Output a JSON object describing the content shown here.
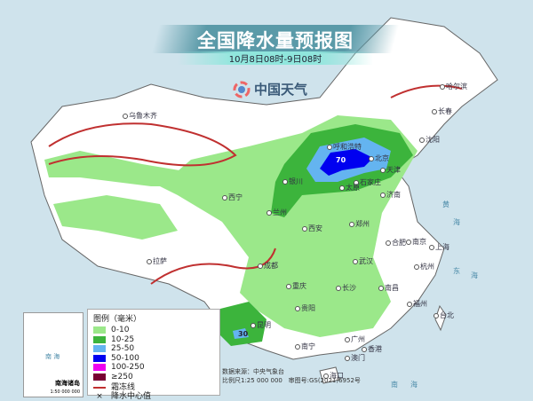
{
  "title": "全国降水量预报图",
  "subtitle": "10月8日08时-9日08时",
  "logo_text": "中国天气",
  "legend": {
    "title": "图例（毫米）",
    "items": [
      {
        "label": "0-10",
        "color": "#9be88a"
      },
      {
        "label": "10-25",
        "color": "#3cb43c"
      },
      {
        "label": "25-50",
        "color": "#64b4f0"
      },
      {
        "label": "50-100",
        "color": "#0000f0"
      },
      {
        "label": "100-250",
        "color": "#f000f0"
      },
      {
        "label": "≥250",
        "color": "#780032"
      }
    ],
    "frost_line": "霜冻线",
    "center_value": "降水中心值"
  },
  "source": "数据来源：中央气象台",
  "scale": "比例尺1:25 000 000",
  "map_number": "审图号:GS(2021)6952号",
  "inset": {
    "title": "南海诸岛",
    "scale": "1:50 000 000",
    "sea": "南 海"
  },
  "centers": [
    "70",
    "30"
  ],
  "seas": [
    "黄",
    "海",
    "东",
    "海",
    "南",
    "海"
  ],
  "cities": [
    "乌鲁木齐",
    "哈尔滨",
    "长春",
    "沈阳",
    "呼和浩特",
    "北京",
    "天津",
    "石家庄",
    "太原",
    "银川",
    "西宁",
    "兰州",
    "济南",
    "郑州",
    "西安",
    "拉萨",
    "成都",
    "重庆",
    "武汉",
    "合肥",
    "南京",
    "上海",
    "杭州",
    "长沙",
    "南昌",
    "贵阳",
    "福州",
    "昆明",
    "南宁",
    "广州",
    "台北",
    "香港",
    "澳门",
    "海口"
  ]
}
